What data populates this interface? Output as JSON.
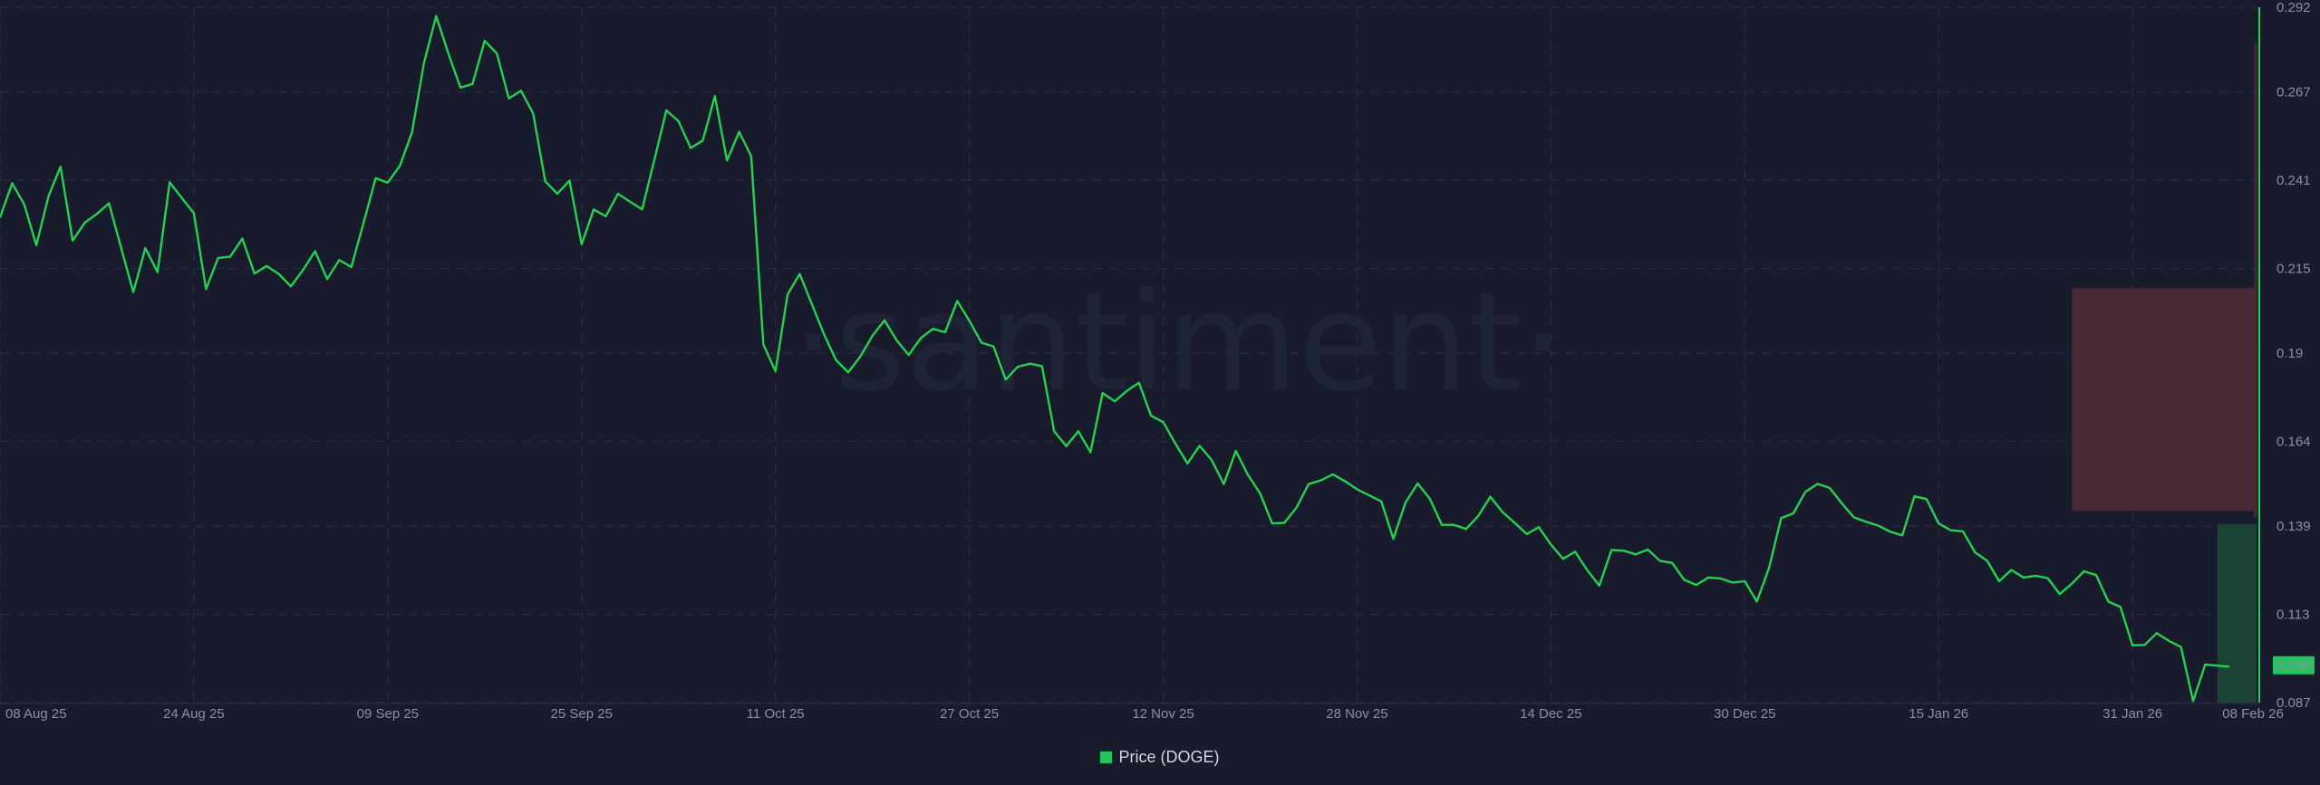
{
  "watermark": "·santiment·",
  "colors": {
    "background": "#181b2b",
    "line": "#26d150",
    "resistance_zone": "#4a2935",
    "support_zone": "#1a4536",
    "badge": "#22c55e"
  },
  "legend": {
    "label": "Price (DOGE)"
  },
  "last_price_badge": "0.098",
  "chart_data": {
    "type": "line",
    "title": "",
    "xlabel": "",
    "ylabel": "",
    "ylim": [
      0.087,
      0.292
    ],
    "grid": true,
    "legend_position": "bottom-center",
    "y_axis_side": "right",
    "y_ticks": [
      "0.292",
      "0.267",
      "0.241",
      "0.215",
      "0.19",
      "0.164",
      "0.139",
      "0.113",
      "0.087"
    ],
    "x_ticks": [
      {
        "date": "2025-08-08",
        "label": "08 Aug 25"
      },
      {
        "date": "2025-08-24",
        "label": "24 Aug 25"
      },
      {
        "date": "2025-09-09",
        "label": "09 Sep 25"
      },
      {
        "date": "2025-09-25",
        "label": "25 Sep 25"
      },
      {
        "date": "2025-10-11",
        "label": "11 Oct 25"
      },
      {
        "date": "2025-10-27",
        "label": "27 Oct 25"
      },
      {
        "date": "2025-11-12",
        "label": "12 Nov 25"
      },
      {
        "date": "2025-11-28",
        "label": "28 Nov 25"
      },
      {
        "date": "2025-12-14",
        "label": "14 Dec 25"
      },
      {
        "date": "2025-12-30",
        "label": "30 Dec 25"
      },
      {
        "date": "2026-01-15",
        "label": "15 Jan 26"
      },
      {
        "date": "2026-01-31",
        "label": "31 Jan 26"
      },
      {
        "date": "2026-02-08",
        "label": "08 Feb 26"
      }
    ],
    "zones": [
      {
        "type": "resistance",
        "from": "2026-01-26",
        "low": 0.1435,
        "high": 0.2092
      },
      {
        "type": "support",
        "from": "2026-02-07",
        "low": 0.087,
        "high": 0.1397
      }
    ],
    "series": [
      {
        "name": "Price (DOGE)",
        "x": [
          "2025-08-08",
          "2025-08-09",
          "2025-08-10",
          "2025-08-11",
          "2025-08-12",
          "2025-08-13",
          "2025-08-14",
          "2025-08-15",
          "2025-08-16",
          "2025-08-17",
          "2025-08-18",
          "2025-08-19",
          "2025-08-20",
          "2025-08-21",
          "2025-08-22",
          "2025-08-23",
          "2025-08-24",
          "2025-08-25",
          "2025-08-26",
          "2025-08-27",
          "2025-08-28",
          "2025-08-29",
          "2025-08-30",
          "2025-08-31",
          "2025-09-01",
          "2025-09-02",
          "2025-09-03",
          "2025-09-04",
          "2025-09-05",
          "2025-09-06",
          "2025-09-07",
          "2025-09-08",
          "2025-09-09",
          "2025-09-10",
          "2025-09-11",
          "2025-09-12",
          "2025-09-13",
          "2025-09-14",
          "2025-09-15",
          "2025-09-16",
          "2025-09-17",
          "2025-09-18",
          "2025-09-19",
          "2025-09-20",
          "2025-09-21",
          "2025-09-22",
          "2025-09-23",
          "2025-09-24",
          "2025-09-25",
          "2025-09-26",
          "2025-09-27",
          "2025-09-28",
          "2025-09-29",
          "2025-09-30",
          "2025-10-01",
          "2025-10-02",
          "2025-10-03",
          "2025-10-04",
          "2025-10-05",
          "2025-10-06",
          "2025-10-07",
          "2025-10-08",
          "2025-10-09",
          "2025-10-10",
          "2025-10-11",
          "2025-10-12",
          "2025-10-13",
          "2025-10-14",
          "2025-10-15",
          "2025-10-16",
          "2025-10-17",
          "2025-10-18",
          "2025-10-19",
          "2025-10-20",
          "2025-10-21",
          "2025-10-22",
          "2025-10-23",
          "2025-10-24",
          "2025-10-25",
          "2025-10-26",
          "2025-10-27",
          "2025-10-28",
          "2025-10-29",
          "2025-10-30",
          "2025-10-31",
          "2025-11-01",
          "2025-11-02",
          "2025-11-03",
          "2025-11-04",
          "2025-11-05",
          "2025-11-06",
          "2025-11-07",
          "2025-11-08",
          "2025-11-09",
          "2025-11-10",
          "2025-11-11",
          "2025-11-12",
          "2025-11-13",
          "2025-11-14",
          "2025-11-15",
          "2025-11-16",
          "2025-11-17",
          "2025-11-18",
          "2025-11-19",
          "2025-11-20",
          "2025-11-21",
          "2025-11-22",
          "2025-11-23",
          "2025-11-24",
          "2025-11-25",
          "2025-11-26",
          "2025-11-27",
          "2025-11-28",
          "2025-11-29",
          "2025-11-30",
          "2025-12-01",
          "2025-12-02",
          "2025-12-03",
          "2025-12-04",
          "2025-12-05",
          "2025-12-06",
          "2025-12-07",
          "2025-12-08",
          "2025-12-09",
          "2025-12-10",
          "2025-12-11",
          "2025-12-12",
          "2025-12-13",
          "2025-12-14",
          "2025-12-15",
          "2025-12-16",
          "2025-12-17",
          "2025-12-18",
          "2025-12-19",
          "2025-12-20",
          "2025-12-21",
          "2025-12-22",
          "2025-12-23",
          "2025-12-24",
          "2025-12-25",
          "2025-12-26",
          "2025-12-27",
          "2025-12-28",
          "2025-12-29",
          "2025-12-30",
          "2025-12-31",
          "2026-01-01",
          "2026-01-02",
          "2026-01-03",
          "2026-01-04",
          "2026-01-05",
          "2026-01-06",
          "2026-01-07",
          "2026-01-08",
          "2026-01-09",
          "2026-01-10",
          "2026-01-11",
          "2026-01-12",
          "2026-01-13",
          "2026-01-14",
          "2026-01-15",
          "2026-01-16",
          "2026-01-17",
          "2026-01-18",
          "2026-01-19",
          "2026-01-20",
          "2026-01-21",
          "2026-01-22",
          "2026-01-23",
          "2026-01-24",
          "2026-01-25",
          "2026-01-26",
          "2026-01-27",
          "2026-01-28",
          "2026-01-29",
          "2026-01-30",
          "2026-01-31",
          "2026-02-01",
          "2026-02-02",
          "2026-02-03",
          "2026-02-04",
          "2026-02-05",
          "2026-02-06",
          "2026-02-07",
          "2026-02-08"
        ],
        "y": [
          0.23,
          0.2401,
          0.2339,
          0.2218,
          0.2363,
          0.245,
          0.2232,
          0.2285,
          0.2311,
          0.2342,
          0.221,
          0.208,
          0.221,
          0.2139,
          0.2404,
          0.2358,
          0.2313,
          0.2089,
          0.2181,
          0.2185,
          0.2238,
          0.2135,
          0.2157,
          0.2134,
          0.2097,
          0.2145,
          0.2201,
          0.2119,
          0.2175,
          0.2154,
          0.2284,
          0.2416,
          0.2403,
          0.2452,
          0.2551,
          0.2757,
          0.2894,
          0.2784,
          0.2683,
          0.2694,
          0.2821,
          0.2784,
          0.2651,
          0.2674,
          0.2607,
          0.2407,
          0.237,
          0.2409,
          0.2221,
          0.2324,
          0.2304,
          0.237,
          0.2347,
          0.2324,
          0.247,
          0.2616,
          0.2584,
          0.2505,
          0.2527,
          0.2658,
          0.2468,
          0.2553,
          0.2481,
          0.1926,
          0.1847,
          0.2073,
          0.2134,
          0.2045,
          0.1956,
          0.188,
          0.1844,
          0.189,
          0.1951,
          0.1997,
          0.1938,
          0.1895,
          0.1945,
          0.1972,
          0.1962,
          0.2054,
          0.1996,
          0.1931,
          0.192,
          0.1822,
          0.186,
          0.1869,
          0.1862,
          0.167,
          0.1626,
          0.167,
          0.1608,
          0.1783,
          0.1758,
          0.1789,
          0.1813,
          0.1716,
          0.1697,
          0.1634,
          0.1575,
          0.1627,
          0.1585,
          0.1514,
          0.1612,
          0.1541,
          0.1487,
          0.1398,
          0.14,
          0.1445,
          0.1514,
          0.1525,
          0.1543,
          0.1523,
          0.1499,
          0.1481,
          0.1463,
          0.1353,
          0.146,
          0.1516,
          0.1471,
          0.1394,
          0.1394,
          0.1382,
          0.142,
          0.1477,
          0.1432,
          0.14,
          0.1367,
          0.1387,
          0.1336,
          0.1294,
          0.1315,
          0.126,
          0.1215,
          0.132,
          0.1318,
          0.1307,
          0.1321,
          0.1288,
          0.1282,
          0.1232,
          0.1217,
          0.1239,
          0.1236,
          0.1224,
          0.1228,
          0.1168,
          0.1267,
          0.1414,
          0.1428,
          0.1491,
          0.1515,
          0.1503,
          0.1458,
          0.1416,
          0.1403,
          0.1392,
          0.1374,
          0.1363,
          0.1478,
          0.147,
          0.1398,
          0.1378,
          0.1375,
          0.1313,
          0.1288,
          0.1228,
          0.1261,
          0.1239,
          0.1244,
          0.1237,
          0.119,
          0.1221,
          0.1257,
          0.1246,
          0.1168,
          0.1152,
          0.1039,
          0.104,
          0.1075,
          0.1052,
          0.1034,
          0.0875,
          0.0982,
          0.0979,
          0.0976
        ]
      }
    ]
  }
}
